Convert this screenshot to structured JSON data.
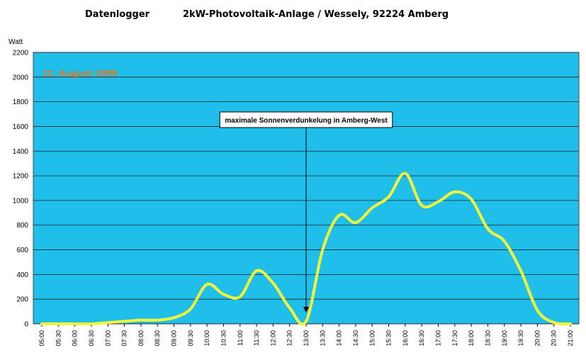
{
  "chart_data": {
    "type": "line",
    "title_left": "Datenlogger",
    "title_right": "2kW-Photovoltaik-Anlage / Wessely, 92224 Amberg",
    "ylabel": "Watt",
    "date_label": "11. August 1999",
    "annotation": {
      "text": "maximale Sonnenverdunkelung in Amberg-West",
      "x": "13:00",
      "y": 0
    },
    "ylim": [
      0,
      2200
    ],
    "yticks": [
      0,
      200,
      400,
      600,
      800,
      1000,
      1200,
      1400,
      1600,
      1800,
      2000,
      2200
    ],
    "grid": true,
    "colors": {
      "plot_background": "#1fbfea",
      "line": "#f4f43a",
      "date": "#e0761e"
    },
    "x": [
      "05:00",
      "05:30",
      "06:00",
      "06:30",
      "07:00",
      "07:30",
      "08:00",
      "08:30",
      "09:00",
      "09:30",
      "10:00",
      "10:30",
      "11:00",
      "11:30",
      "12:00",
      "12:30",
      "13:00",
      "13:30",
      "14:00",
      "14:30",
      "15:00",
      "15:30",
      "16:00",
      "16:30",
      "17:00",
      "17:30",
      "18:00",
      "18:30",
      "19:00",
      "19:30",
      "20:00",
      "20:30",
      "21:00"
    ],
    "series": [
      {
        "values": [
          0,
          0,
          0,
          0,
          10,
          20,
          30,
          30,
          50,
          120,
          320,
          240,
          220,
          430,
          330,
          130,
          20,
          600,
          880,
          820,
          940,
          1030,
          1220,
          960,
          990,
          1070,
          1010,
          770,
          670,
          430,
          110,
          10,
          0
        ]
      }
    ]
  }
}
